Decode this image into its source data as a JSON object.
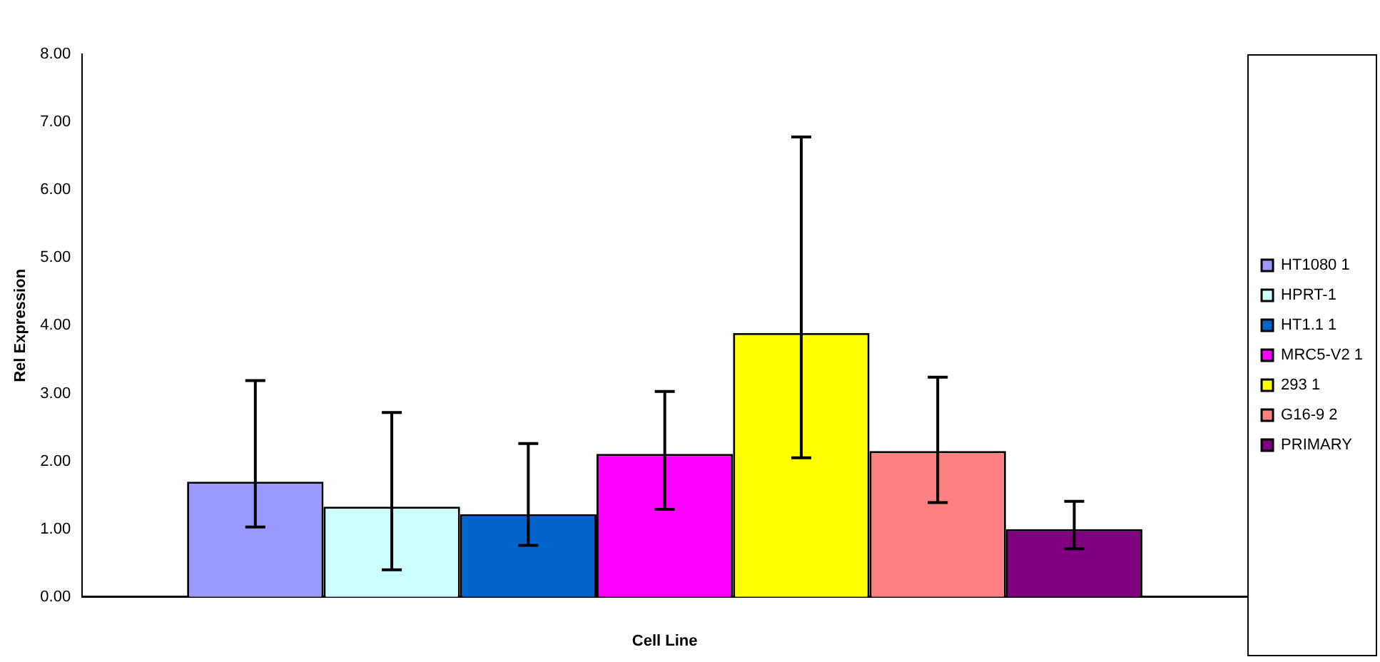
{
  "chart_data": {
    "type": "bar",
    "xlabel": "Cell Line",
    "ylabel": "Rel Expression",
    "categories": [
      null
    ],
    "series": [
      {
        "name": "HT1080 1",
        "color": "#9999ff",
        "values": [
          1.7
        ],
        "errors": [
          [
            1.03,
            3.19
          ]
        ]
      },
      {
        "name": "HPRT-1",
        "color": "#ccffff",
        "values": [
          1.33
        ],
        "errors": [
          [
            0.4,
            2.72
          ]
        ]
      },
      {
        "name": "HT1.1 1",
        "color": "#0066cc",
        "values": [
          1.22
        ],
        "errors": [
          [
            0.76,
            2.26
          ]
        ]
      },
      {
        "name": "MRC5-V2 1",
        "color": "#ff00ff",
        "values": [
          2.11
        ],
        "errors": [
          [
            1.29,
            3.03
          ]
        ]
      },
      {
        "name": "293 1",
        "color": "#ffff00",
        "values": [
          3.89
        ],
        "errors": [
          [
            2.05,
            6.78
          ]
        ]
      },
      {
        "name": "G16-9 2",
        "color": "#ff8080",
        "values": [
          2.15
        ],
        "errors": [
          [
            1.39,
            3.24
          ]
        ]
      },
      {
        "name": "PRIMARY",
        "color": "#800080",
        "values": [
          1.0
        ],
        "errors": [
          [
            0.71,
            1.41
          ]
        ]
      }
    ],
    "ylim": [
      0,
      8
    ],
    "yticks": [
      {
        "value": 0,
        "label": "0.00"
      },
      {
        "value": 1,
        "label": "1.00"
      },
      {
        "value": 2,
        "label": "2.00"
      },
      {
        "value": 3,
        "label": "3.00"
      },
      {
        "value": 4,
        "label": "4.00"
      },
      {
        "value": 5,
        "label": "5.00"
      },
      {
        "value": 6,
        "label": "6.00"
      },
      {
        "value": 7,
        "label": "7.00"
      },
      {
        "value": 8,
        "label": "8.00"
      }
    ],
    "grid": false,
    "legend": "right"
  }
}
